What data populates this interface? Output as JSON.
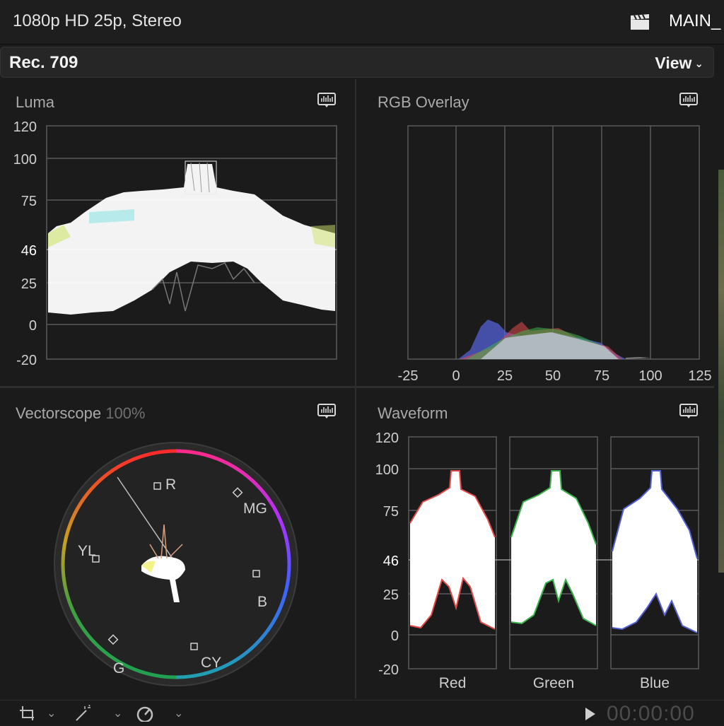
{
  "topbar": {
    "format": "1080p HD 25p, Stereo",
    "project": "MAIN_",
    "clapper_icon": "clapperboard-icon"
  },
  "subbar": {
    "color_space": "Rec. 709",
    "view_label": "View",
    "view_chevron": "⌄"
  },
  "panels": {
    "luma": {
      "title": "Luma",
      "ticks": [
        "120",
        "100",
        "75",
        "46",
        "25",
        "0",
        "-20"
      ],
      "highlight": "46"
    },
    "rgb_overlay": {
      "title": "RGB Overlay",
      "xticks": [
        "-25",
        "0",
        "25",
        "50",
        "75",
        "100",
        "125"
      ]
    },
    "vectorscope": {
      "title": "Vectorscope",
      "percent": "100%",
      "targets": [
        "R",
        "MG",
        "B",
        "CY",
        "G",
        "YL"
      ]
    },
    "waveform": {
      "title": "Waveform",
      "ticks": [
        "120",
        "100",
        "75",
        "46",
        "25",
        "0",
        "-20"
      ],
      "highlight": "46",
      "channels": [
        "Red",
        "Green",
        "Blue"
      ]
    }
  },
  "bottombar": {
    "timecode": "00:00:00"
  },
  "colors": {
    "background": "#1b1b1c",
    "red": "#e24a4a",
    "green": "#3db34d",
    "blue": "#5561d6"
  }
}
